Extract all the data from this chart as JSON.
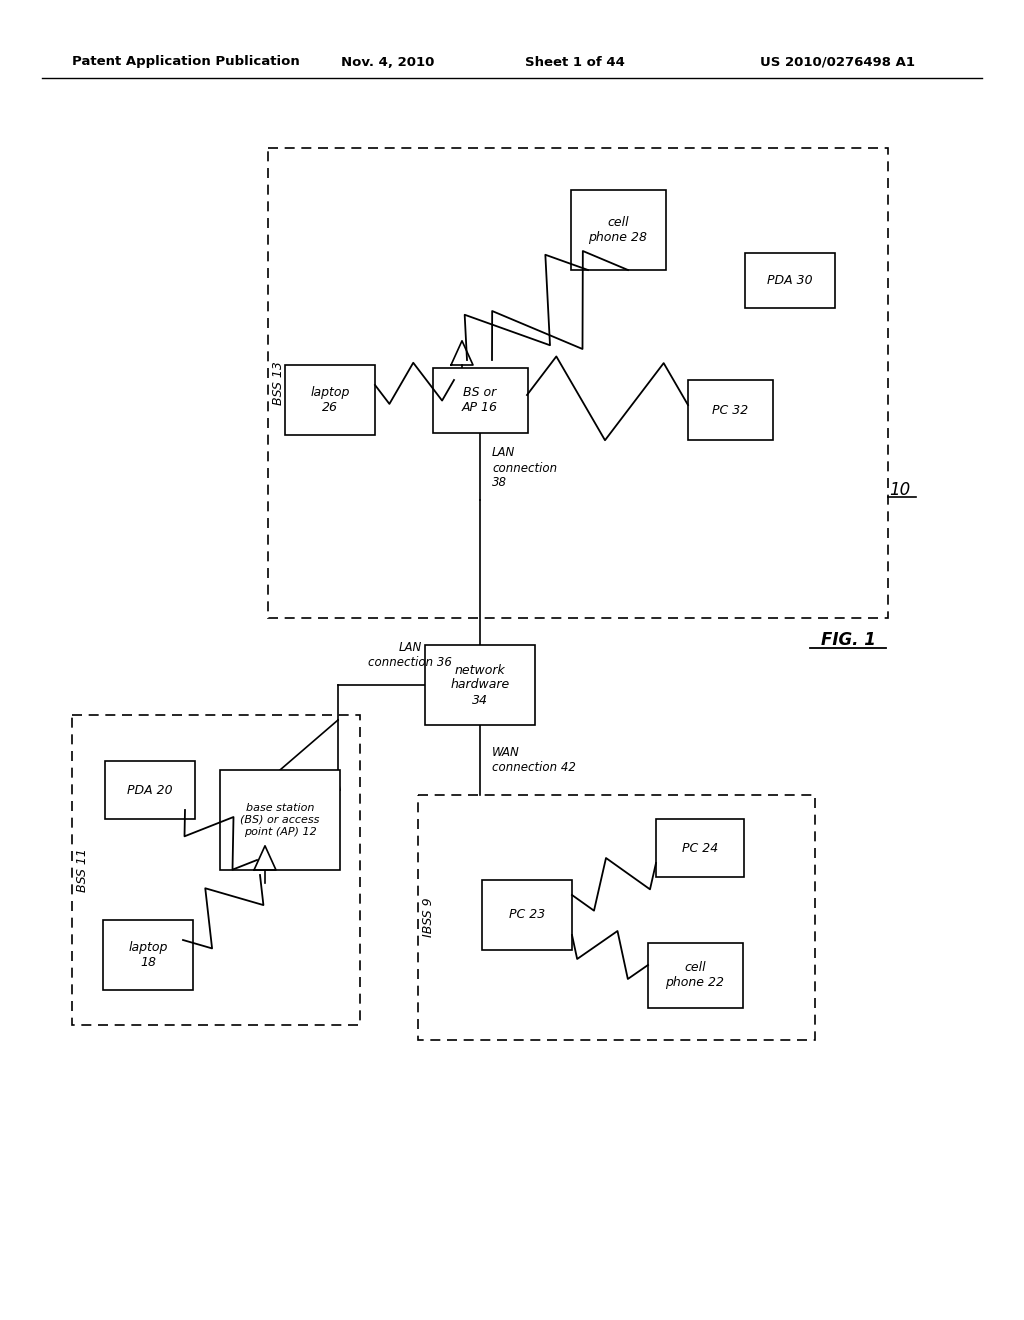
{
  "bg_color": "#ffffff",
  "header_line1": "Patent Application Publication",
  "header_line2": "Nov. 4, 2010",
  "header_line3": "Sheet 1 of 44",
  "header_line4": "US 2010/0276498 A1",
  "fig_label": "FIG. 1"
}
